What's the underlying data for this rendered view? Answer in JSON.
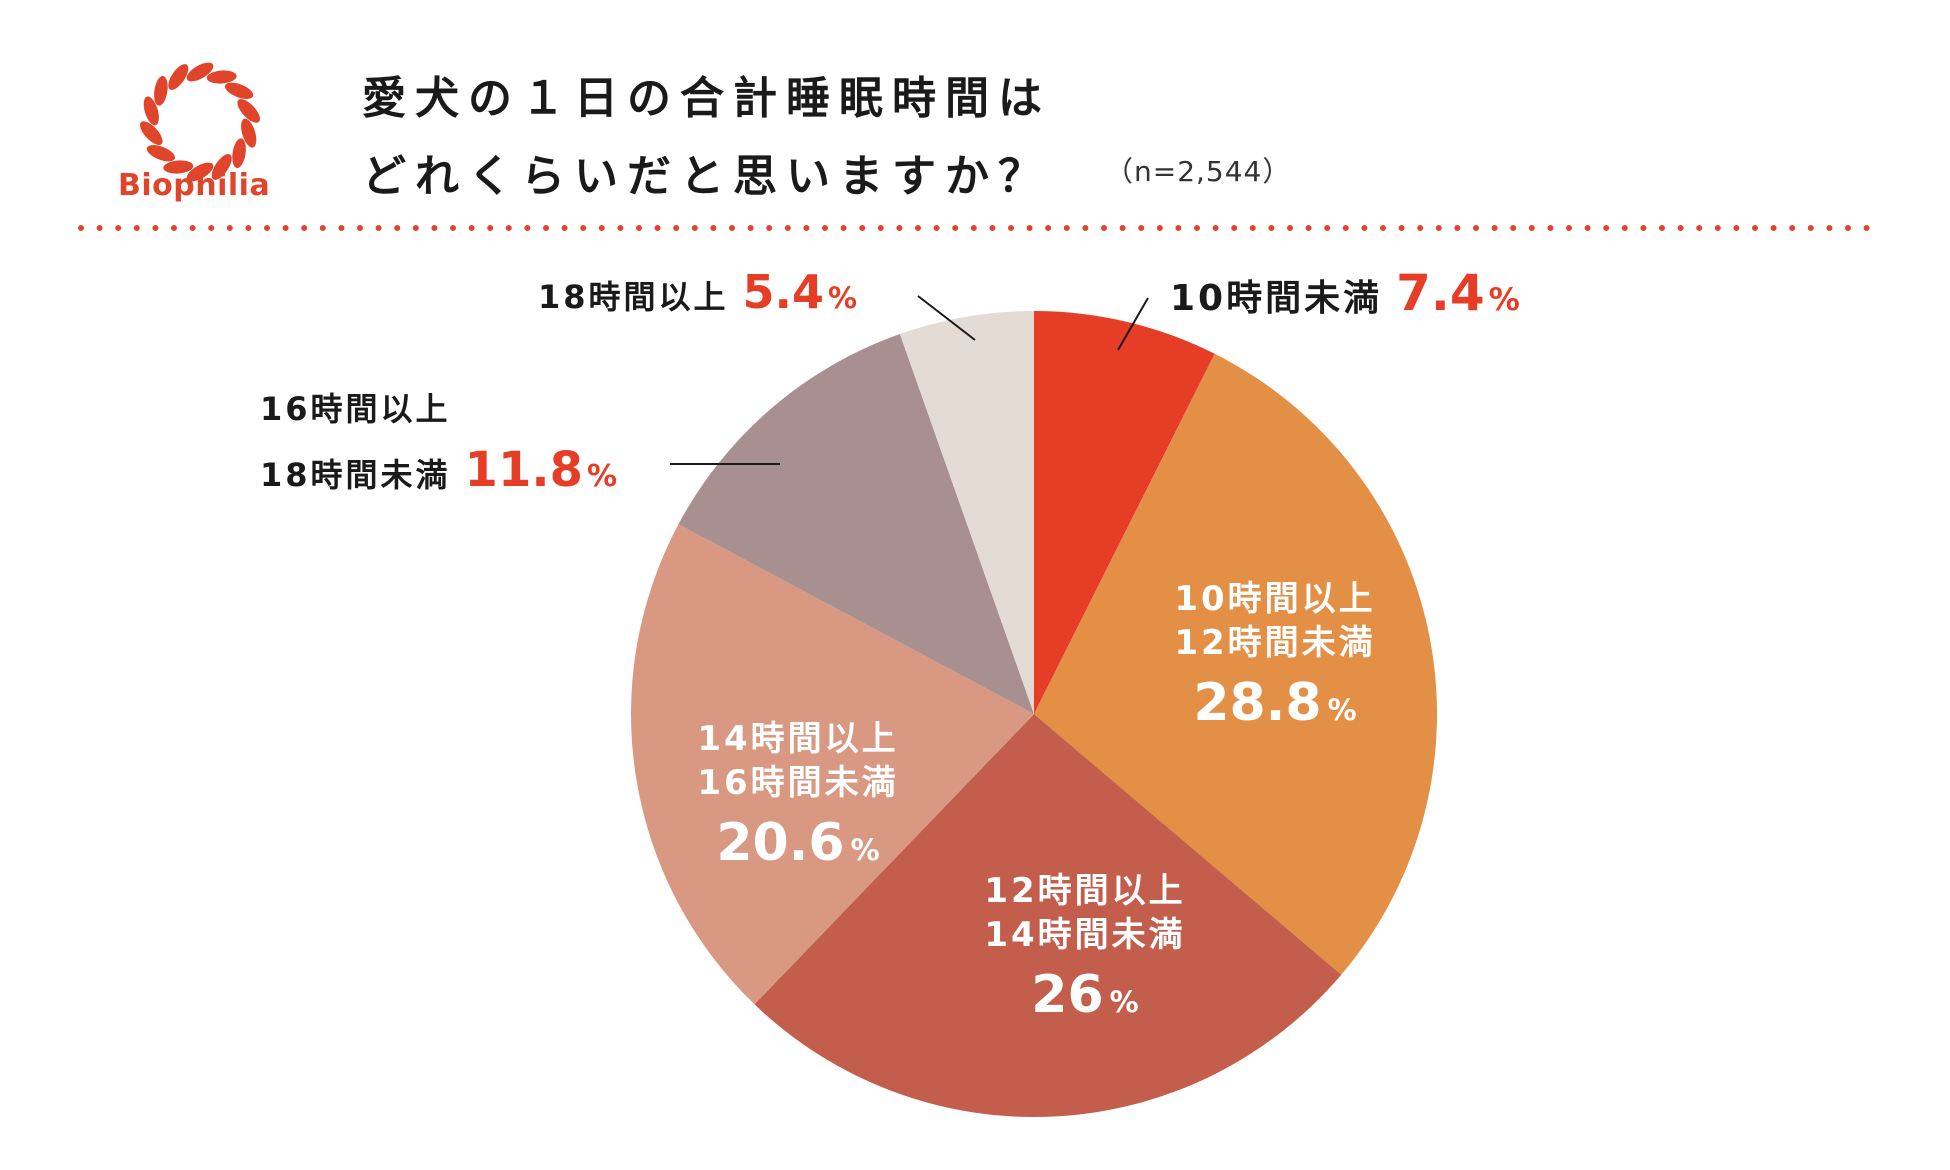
{
  "brand": {
    "name": "Biophilia",
    "accent": "#e0452b"
  },
  "header": {
    "title_line1": "愛犬の１日の合計睡眠時間は",
    "title_line2": "どれくらいだと思いますか？",
    "sample_size": "（n=2,544）"
  },
  "chart_data": {
    "type": "pie",
    "start_angle_deg": 0,
    "direction": "clockwise",
    "slices": [
      {
        "label_lines": [
          "10時間未満"
        ],
        "value": 7.4,
        "value_text": "7.4",
        "unit": "%",
        "color": "#e53d26",
        "label_position": "outside",
        "label_color": "#1a1a1a",
        "value_color": "#e53d26"
      },
      {
        "label_lines": [
          "10時間以上",
          "12時間未満"
        ],
        "value": 28.8,
        "value_text": "28.8",
        "unit": "%",
        "color": "#e38f46",
        "label_position": "inside",
        "label_color": "#ffffff",
        "value_color": "#ffffff"
      },
      {
        "label_lines": [
          "12時間以上",
          "14時間未満"
        ],
        "value": 26,
        "value_text": "26",
        "unit": "%",
        "color": "#c45e4c",
        "label_position": "inside",
        "label_color": "#ffffff",
        "value_color": "#ffffff"
      },
      {
        "label_lines": [
          "14時間以上",
          "16時間未満"
        ],
        "value": 20.6,
        "value_text": "20.6",
        "unit": "%",
        "color": "#d99882",
        "label_position": "inside",
        "label_color": "#ffffff",
        "value_color": "#ffffff"
      },
      {
        "label_lines": [
          "16時間以上",
          "18時間未満"
        ],
        "value": 11.8,
        "value_text": "11.8",
        "unit": "%",
        "color": "#a99090",
        "label_position": "outside",
        "label_color": "#1a1a1a",
        "value_color": "#e53d26"
      },
      {
        "label_lines": [
          "18時間以上"
        ],
        "value": 5.4,
        "value_text": "5.4",
        "unit": "%",
        "color": "#e3dbd4",
        "label_position": "outside",
        "label_color": "#1a1a1a",
        "value_color": "#e53d26"
      }
    ]
  }
}
